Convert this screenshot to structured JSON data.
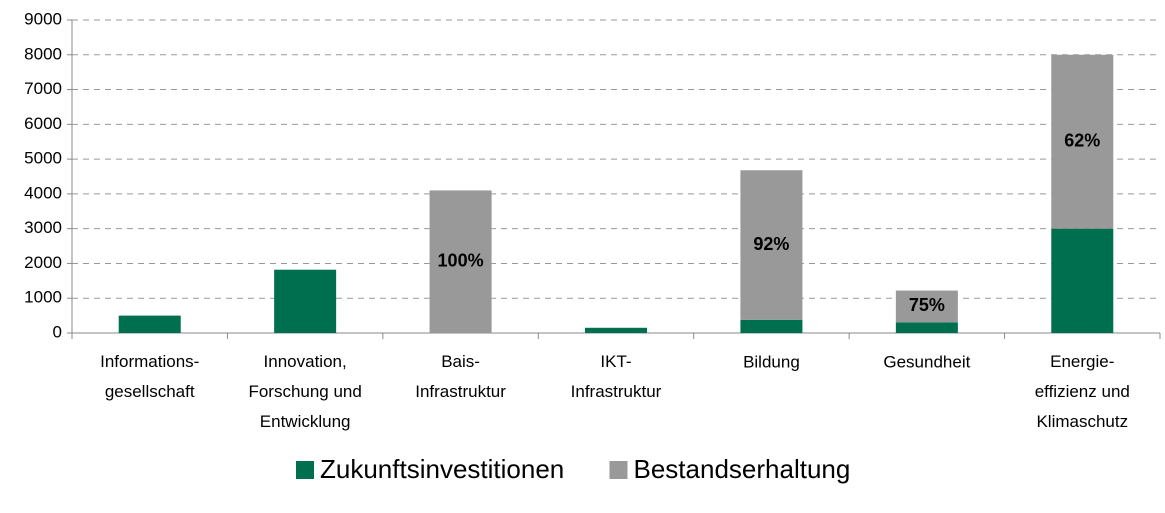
{
  "chart_data": {
    "type": "stacked_bar",
    "categories": [
      "Informations-\ngesellschaft",
      "Innovation,\nForschung und\nEntwicklung",
      "Bais-\nInfrastruktur",
      "IKT-\nInfrastruktur",
      "Bildung",
      "Gesundheit",
      "Energie-\neffizienz und\nKlimaschutz"
    ],
    "series": [
      {
        "name": "Zukunftsinvestitionen",
        "color": "#006f50",
        "values": [
          500,
          1820,
          0,
          150,
          380,
          305,
          3000
        ]
      },
      {
        "name": "Bestandserhaltung",
        "color": "#999999",
        "values": [
          0,
          0,
          4100,
          0,
          4300,
          915,
          5000
        ],
        "share_labels": [
          null,
          null,
          "100%",
          null,
          "92%",
          "75%",
          "62%"
        ]
      }
    ],
    "ylim": [
      0,
      9000
    ],
    "yticks": [
      0,
      1000,
      2000,
      3000,
      4000,
      5000,
      6000,
      7000,
      8000,
      9000
    ],
    "grid": true,
    "legend": "bottom"
  }
}
